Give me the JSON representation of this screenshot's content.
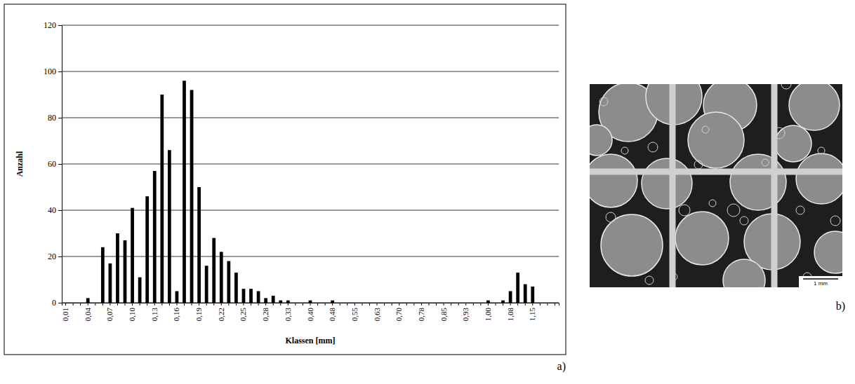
{
  "chart_data": {
    "type": "bar",
    "x_label": "Klassen [mm]",
    "y_label": "Anzahl",
    "categories": [
      "0,01",
      null,
      null,
      "0,04",
      null,
      null,
      "0,07",
      null,
      null,
      "0,10",
      null,
      null,
      "0,13",
      null,
      null,
      "0,16",
      null,
      null,
      "0,19",
      null,
      null,
      "0,22",
      null,
      null,
      "0,25",
      null,
      null,
      "0,28",
      null,
      null,
      "0,33",
      null,
      null,
      "0,40",
      null,
      null,
      "0,48",
      null,
      null,
      "0,55",
      null,
      null,
      "0,63",
      null,
      null,
      "0,70",
      null,
      null,
      "0,78",
      null,
      null,
      "0,85",
      null,
      null,
      "0,93",
      null,
      null,
      "1,00",
      null,
      null,
      "1,08",
      null,
      null,
      "1,15",
      null,
      null,
      null
    ],
    "values": [
      0,
      0,
      0,
      2,
      0,
      24,
      17,
      30,
      27,
      41,
      11,
      46,
      57,
      90,
      66,
      5,
      96,
      92,
      50,
      16,
      28,
      22,
      18,
      13,
      6,
      6,
      5,
      2,
      3,
      1,
      1,
      0,
      0,
      1,
      0,
      0,
      1,
      0,
      0,
      0,
      0,
      0,
      0,
      0,
      0,
      0,
      0,
      0,
      0,
      0,
      0,
      0,
      0,
      0,
      0,
      0,
      0,
      1,
      0,
      1,
      5,
      13,
      8,
      7,
      0,
      0,
      0
    ],
    "color": "#000000",
    "ylim": [
      0,
      120
    ],
    "yticks": [
      0,
      20,
      40,
      60,
      80,
      100,
      120
    ],
    "grid": true
  },
  "panels": {
    "a": "a)",
    "b": "b)"
  },
  "photo": {
    "scale_bar": "1 mm"
  }
}
